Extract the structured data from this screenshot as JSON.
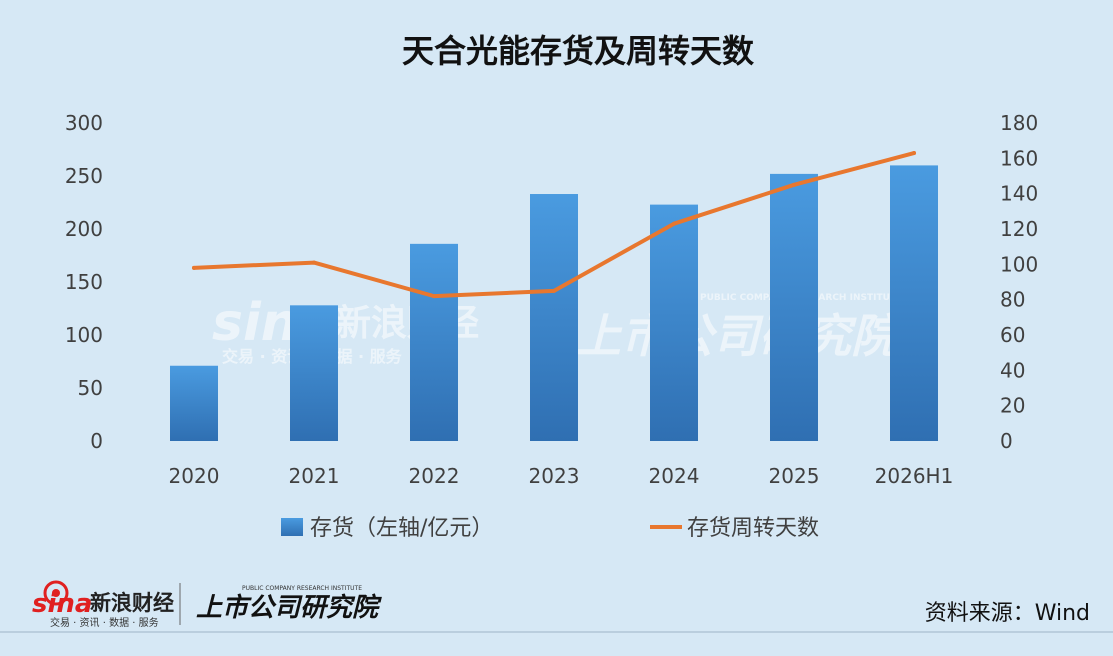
{
  "chart_data": {
    "type": "bar+line",
    "title": "天合光能存货及周转天数",
    "categories": [
      "2020",
      "2021",
      "2022",
      "2023",
      "2024",
      "2025",
      "2026H1"
    ],
    "series": [
      {
        "name": "存货（左轴/亿元）",
        "type": "bar",
        "axis": "left",
        "color": "#3a86d0",
        "values": [
          71,
          128,
          186,
          233,
          223,
          252,
          260
        ]
      },
      {
        "name": "存货周转天数",
        "type": "line",
        "axis": "right",
        "color": "#e8772e",
        "values": [
          98,
          101,
          82,
          85,
          123,
          145,
          163
        ]
      }
    ],
    "left_axis": {
      "ticks": [
        "0",
        "50",
        "100",
        "150",
        "200",
        "250",
        "300"
      ],
      "min": 0,
      "max": 300
    },
    "right_axis": {
      "ticks": [
        "0",
        "20",
        "40",
        "60",
        "80",
        "100",
        "120",
        "140",
        "160",
        "180"
      ],
      "min": 0,
      "max": 180
    },
    "legend_position": "bottom",
    "grid": false
  },
  "watermark": {
    "sina_logo": "sina",
    "sina_name": "新浪财经",
    "sina_tagline": "交易 · 资讯 · 数据 · 服务",
    "institute_name": "上市公司研究院",
    "institute_en": "PUBLIC COMPANY RESEARCH INSTITUTE"
  },
  "footer": {
    "sina_logo": "sina",
    "sina_name": "新浪财经",
    "sina_tagline": "交易 · 资讯 · 数据 · 服务",
    "institute_name": "上市公司研究院",
    "institute_en": "PUBLIC COMPANY RESEARCH INSTITUTE",
    "source": "资料来源：Wind"
  },
  "colors": {
    "background": "#d6e8f5",
    "bar": "#3a86d0",
    "line": "#e8772e"
  }
}
